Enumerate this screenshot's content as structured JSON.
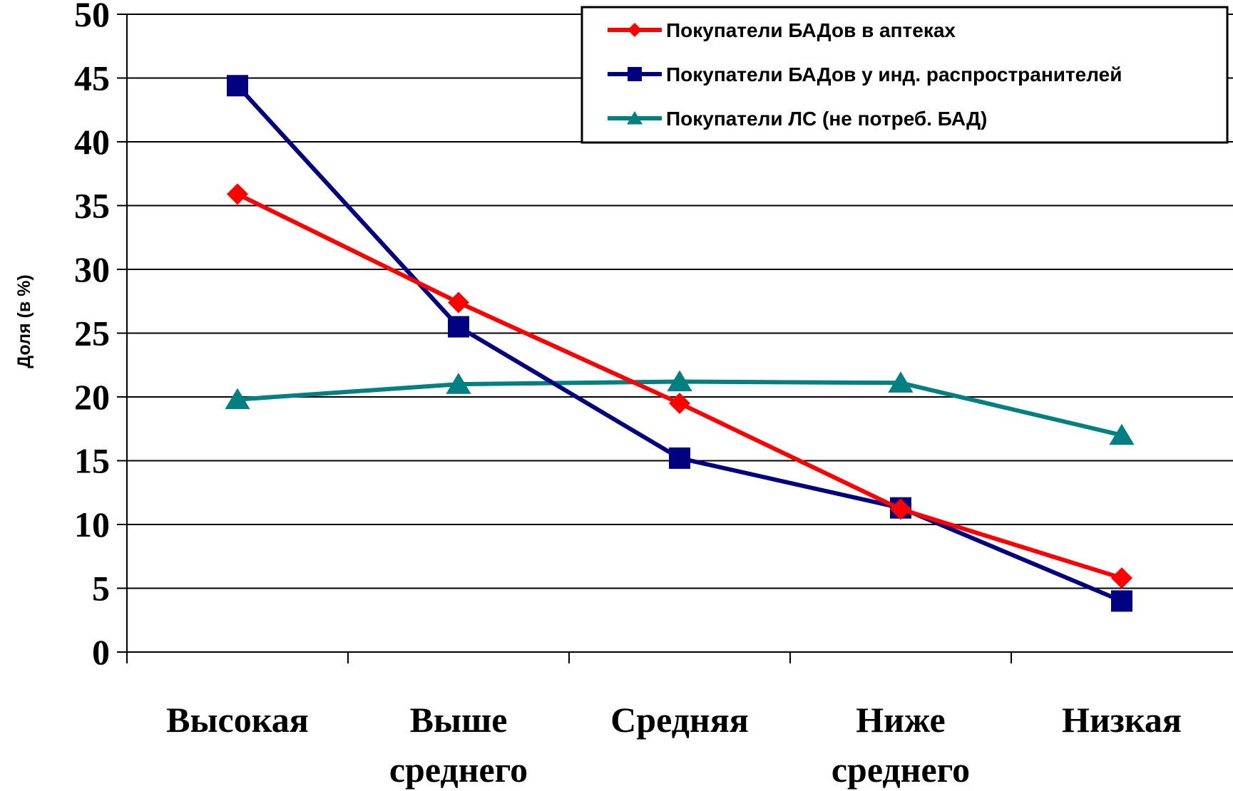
{
  "chart_data": {
    "type": "line",
    "ylabel": "Доля (в %)",
    "xlabel": "",
    "ylim": [
      0,
      50
    ],
    "yticks": [
      "0",
      "5",
      "10",
      "15",
      "20",
      "25",
      "30",
      "35",
      "40",
      "45",
      "50"
    ],
    "categories": [
      [
        "Высокая"
      ],
      [
        "Выше",
        "среднего"
      ],
      [
        "Средняя"
      ],
      [
        "Ниже",
        "среднего"
      ],
      [
        "Низкая"
      ]
    ],
    "grid": true,
    "legend_position": "top-right",
    "series": [
      {
        "name": "Покупатели БАДов в аптеках",
        "color": "#ff0000",
        "marker": "diamond",
        "values": [
          35.9,
          27.4,
          19.5,
          11.2,
          5.8
        ]
      },
      {
        "name": "Покупатели БАДов у инд. распространителей",
        "color": "#000080",
        "marker": "square",
        "values": [
          44.4,
          25.5,
          15.2,
          11.3,
          4.0
        ]
      },
      {
        "name": "Покупатели ЛС (не потреб. БАД)",
        "color": "#008080",
        "marker": "triangle",
        "values": [
          19.8,
          21.0,
          21.2,
          21.1,
          17.0
        ]
      }
    ]
  }
}
